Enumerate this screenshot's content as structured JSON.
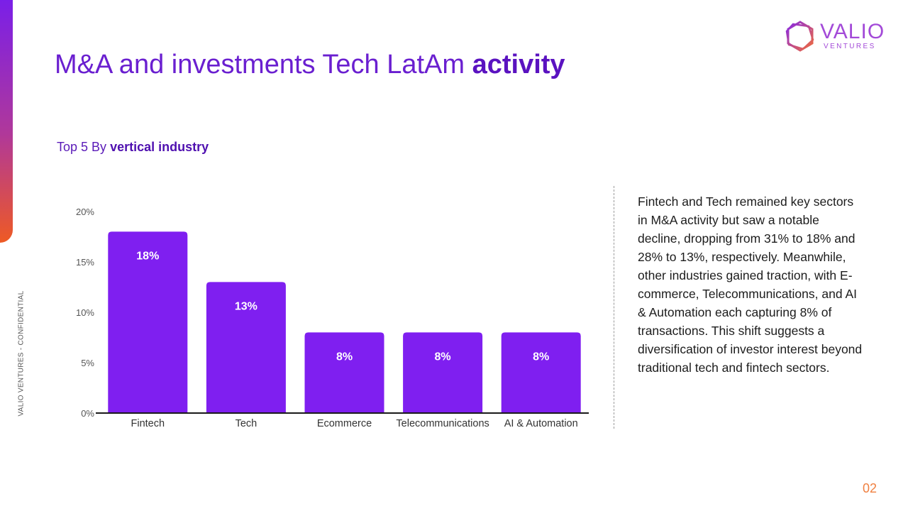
{
  "title": {
    "main": "M&A and investments Tech LatAm",
    "bold": "activity"
  },
  "subtitle": {
    "main": "Top 5 By",
    "bold": "vertical industry"
  },
  "side_label": "VALIO VENTURES - CONFIDENTIAL",
  "logo": {
    "word": "VALIO",
    "sub": "VENTURES",
    "icon": "hexagon-logo-icon"
  },
  "description": "Fintech and Tech remained key sectors in M&A activity but saw a notable decline, dropping from 31% to 18% and 28% to 13%, respectively. Meanwhile, other industries gained traction, with E-commerce, Telecommunications, and AI & Automation each capturing 8% of transactions. This shift suggests a diversification of investor interest beyond traditional tech and fintech sectors.",
  "page_number": "02",
  "colors": {
    "bar": "#7f1ff0",
    "title": "#6a1fd0",
    "accent_orange": "#ee5a24"
  },
  "chart_data": {
    "type": "bar",
    "categories": [
      "Fintech",
      "Tech",
      "Ecommerce",
      "Telecommunications",
      "AI & Automation"
    ],
    "values": [
      18,
      13,
      8,
      8,
      8
    ],
    "data_labels": [
      "18%",
      "13%",
      "8%",
      "8%",
      "8%"
    ],
    "yticks": [
      "0%",
      "5%",
      "10%",
      "15%",
      "20%"
    ],
    "ytick_values": [
      0,
      5,
      10,
      15,
      20
    ],
    "ylim": [
      0,
      20
    ],
    "grid": false,
    "legend": "none"
  }
}
